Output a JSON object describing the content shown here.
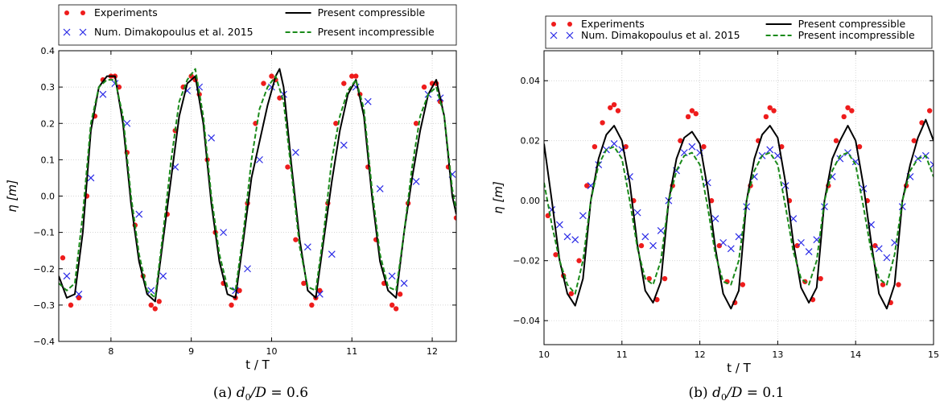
{
  "legend": {
    "experiments": "Experiments",
    "numerical": "Num. Dimakopoulus et al. 2015",
    "compressible": "Present compressible",
    "incompressible": "Present incompressible"
  },
  "colors": {
    "experiments": "#ee1c1c",
    "numerical": "#2a2ae6",
    "compressible": "#000000",
    "incompressible": "#1a8a1a",
    "grid": "#c8c8c8"
  },
  "chart_data": [
    {
      "type": "line",
      "panel": "(a)",
      "caption_label": "(a)",
      "caption_math": "d0/D = 0.6",
      "xlabel": "t / T",
      "ylabel": "η [m]",
      "xlim": [
        7.35,
        12.3
      ],
      "ylim": [
        -0.4,
        0.4
      ],
      "xticks": [
        8,
        9,
        10,
        11,
        12
      ],
      "yticks": [
        -0.4,
        -0.3,
        -0.2,
        -0.1,
        0.0,
        0.1,
        0.2,
        0.3,
        0.4
      ],
      "ytick_labels": [
        "−0.4",
        "−0.3",
        "−0.2",
        "−0.1",
        "0.0",
        "0.1",
        "0.2",
        "0.3",
        "0.4"
      ],
      "grid": true,
      "legend_position": "top, outside",
      "series": [
        {
          "name": "Experiments",
          "style": "dots",
          "x": [
            7.4,
            7.5,
            7.6,
            7.7,
            7.8,
            7.9,
            8.0,
            8.05,
            8.1,
            8.2,
            8.3,
            8.4,
            8.5,
            8.55,
            8.6,
            8.7,
            8.8,
            8.9,
            9.0,
            9.05,
            9.1,
            9.2,
            9.3,
            9.4,
            9.5,
            9.55,
            9.6,
            9.7,
            9.8,
            9.9,
            10.0,
            10.05,
            10.1,
            10.2,
            10.3,
            10.4,
            10.5,
            10.55,
            10.6,
            10.7,
            10.8,
            10.9,
            11.0,
            11.05,
            11.1,
            11.2,
            11.3,
            11.4,
            11.5,
            11.55,
            11.6,
            11.7,
            11.8,
            11.9,
            12.0,
            12.05,
            12.1,
            12.2,
            12.3
          ],
          "y": [
            -0.17,
            -0.3,
            -0.28,
            0.0,
            0.22,
            0.32,
            0.33,
            0.33,
            0.3,
            0.12,
            -0.08,
            -0.22,
            -0.3,
            -0.31,
            -0.29,
            -0.05,
            0.18,
            0.3,
            0.33,
            0.32,
            0.28,
            0.1,
            -0.1,
            -0.24,
            -0.3,
            -0.28,
            -0.26,
            -0.02,
            0.2,
            0.31,
            0.33,
            0.32,
            0.27,
            0.08,
            -0.12,
            -0.24,
            -0.3,
            -0.28,
            -0.26,
            -0.02,
            0.2,
            0.31,
            0.33,
            0.33,
            0.28,
            0.08,
            -0.12,
            -0.24,
            -0.3,
            -0.31,
            -0.27,
            -0.02,
            0.2,
            0.3,
            0.31,
            0.31,
            0.26,
            0.08,
            -0.06
          ]
        },
        {
          "name": "Num. Dimakopoulus et al. 2015",
          "style": "crosses",
          "x": [
            7.45,
            7.6,
            7.75,
            7.9,
            8.05,
            8.2,
            8.35,
            8.5,
            8.65,
            8.8,
            8.95,
            9.1,
            9.25,
            9.4,
            9.55,
            9.7,
            9.85,
            10.0,
            10.15,
            10.3,
            10.45,
            10.6,
            10.75,
            10.9,
            11.05,
            11.2,
            11.35,
            11.5,
            11.65,
            11.8,
            11.95,
            12.1,
            12.25
          ],
          "y": [
            -0.22,
            -0.27,
            0.05,
            0.28,
            0.31,
            0.2,
            -0.05,
            -0.26,
            -0.22,
            0.08,
            0.29,
            0.3,
            0.16,
            -0.1,
            -0.26,
            -0.2,
            0.1,
            0.3,
            0.28,
            0.12,
            -0.14,
            -0.27,
            -0.16,
            0.14,
            0.3,
            0.26,
            0.02,
            -0.22,
            -0.24,
            0.04,
            0.28,
            0.27,
            0.06
          ]
        },
        {
          "name": "Present compressible",
          "style": "solid",
          "x": [
            7.35,
            7.45,
            7.55,
            7.65,
            7.75,
            7.85,
            7.95,
            8.05,
            8.15,
            8.25,
            8.35,
            8.45,
            8.55,
            8.65,
            8.75,
            8.85,
            8.95,
            9.05,
            9.15,
            9.25,
            9.35,
            9.45,
            9.55,
            9.65,
            9.75,
            9.85,
            9.95,
            10.05,
            10.1,
            10.15,
            10.25,
            10.35,
            10.45,
            10.55,
            10.65,
            10.75,
            10.85,
            10.95,
            11.05,
            11.15,
            11.25,
            11.35,
            11.45,
            11.55,
            11.65,
            11.75,
            11.85,
            11.95,
            12.05,
            12.15,
            12.25,
            12.3
          ],
          "y": [
            -0.22,
            -0.28,
            -0.27,
            -0.1,
            0.18,
            0.3,
            0.33,
            0.33,
            0.2,
            -0.02,
            -0.18,
            -0.27,
            -0.29,
            -0.12,
            0.05,
            0.22,
            0.31,
            0.33,
            0.2,
            -0.02,
            -0.18,
            -0.27,
            -0.28,
            -0.12,
            0.05,
            0.15,
            0.25,
            0.33,
            0.35,
            0.3,
            0.08,
            -0.12,
            -0.26,
            -0.28,
            -0.12,
            0.04,
            0.18,
            0.28,
            0.32,
            0.22,
            0.0,
            -0.18,
            -0.26,
            -0.28,
            -0.1,
            0.05,
            0.18,
            0.28,
            0.32,
            0.22,
            0.0,
            -0.05
          ]
        },
        {
          "name": "Present incompressible",
          "style": "dashed",
          "x": [
            7.35,
            7.45,
            7.55,
            7.65,
            7.75,
            7.85,
            7.95,
            8.05,
            8.15,
            8.25,
            8.35,
            8.45,
            8.55,
            8.65,
            8.75,
            8.85,
            8.95,
            9.05,
            9.15,
            9.25,
            9.35,
            9.45,
            9.55,
            9.65,
            9.75,
            9.85,
            9.95,
            10.05,
            10.15,
            10.25,
            10.35,
            10.45,
            10.55,
            10.65,
            10.75,
            10.85,
            10.95,
            11.05,
            11.15,
            11.25,
            11.35,
            11.45,
            11.55,
            11.65,
            11.75,
            11.85,
            11.95,
            12.05,
            12.15,
            12.25,
            12.3
          ],
          "y": [
            -0.24,
            -0.26,
            -0.24,
            -0.05,
            0.2,
            0.3,
            0.32,
            0.32,
            0.22,
            0.0,
            -0.16,
            -0.26,
            -0.28,
            -0.1,
            0.1,
            0.26,
            0.32,
            0.35,
            0.22,
            0.0,
            -0.16,
            -0.25,
            -0.26,
            -0.1,
            0.1,
            0.24,
            0.3,
            0.33,
            0.26,
            0.06,
            -0.14,
            -0.25,
            -0.26,
            -0.1,
            0.1,
            0.22,
            0.29,
            0.32,
            0.24,
            0.02,
            -0.16,
            -0.25,
            -0.26,
            -0.1,
            0.08,
            0.22,
            0.28,
            0.3,
            0.22,
            0.02,
            -0.04
          ]
        }
      ]
    },
    {
      "type": "line",
      "panel": "(b)",
      "caption_label": "(b)",
      "caption_math": "d0/D = 0.1",
      "xlabel": "t / T",
      "ylabel": "η [m]",
      "xlim": [
        10,
        15
      ],
      "ylim": [
        -0.048,
        0.05
      ],
      "xticks": [
        10,
        11,
        12,
        13,
        14,
        15
      ],
      "yticks": [
        -0.04,
        -0.02,
        0.0,
        0.02,
        0.04
      ],
      "ytick_labels": [
        "−0.04",
        "−0.02",
        "0.00",
        "0.02",
        "0.04"
      ],
      "grid": true,
      "legend_position": "top, inside",
      "series": [
        {
          "name": "Experiments",
          "style": "dots",
          "x": [
            10.05,
            10.15,
            10.25,
            10.35,
            10.45,
            10.55,
            10.65,
            10.75,
            10.85,
            10.9,
            10.95,
            11.05,
            11.15,
            11.25,
            11.35,
            11.45,
            11.55,
            11.65,
            11.75,
            11.85,
            11.9,
            11.95,
            12.05,
            12.15,
            12.25,
            12.35,
            12.45,
            12.55,
            12.65,
            12.75,
            12.85,
            12.9,
            12.95,
            13.05,
            13.15,
            13.25,
            13.35,
            13.45,
            13.55,
            13.65,
            13.75,
            13.85,
            13.9,
            13.95,
            14.05,
            14.15,
            14.25,
            14.35,
            14.45,
            14.55,
            14.65,
            14.75,
            14.85,
            14.95
          ],
          "y": [
            -0.005,
            -0.018,
            -0.025,
            -0.031,
            -0.02,
            0.005,
            0.018,
            0.026,
            0.031,
            0.032,
            0.03,
            0.018,
            0.0,
            -0.015,
            -0.026,
            -0.033,
            -0.026,
            0.005,
            0.02,
            0.028,
            0.03,
            0.029,
            0.018,
            0.0,
            -0.015,
            -0.027,
            -0.034,
            -0.028,
            0.005,
            0.02,
            0.028,
            0.031,
            0.03,
            0.018,
            0.0,
            -0.015,
            -0.027,
            -0.033,
            -0.026,
            0.005,
            0.02,
            0.028,
            0.031,
            0.03,
            0.018,
            0.0,
            -0.015,
            -0.028,
            -0.034,
            -0.028,
            0.005,
            0.02,
            0.026,
            0.03
          ]
        },
        {
          "name": "Num. Dimakopoulus et al. 2015",
          "style": "crosses",
          "x": [
            10.1,
            10.2,
            10.3,
            10.4,
            10.5,
            10.6,
            10.7,
            10.8,
            10.9,
            11.0,
            11.1,
            11.2,
            11.3,
            11.4,
            11.5,
            11.6,
            11.7,
            11.8,
            11.9,
            12.0,
            12.1,
            12.2,
            12.3,
            12.4,
            12.5,
            12.6,
            12.7,
            12.8,
            12.9,
            13.0,
            13.1,
            13.2,
            13.3,
            13.4,
            13.5,
            13.6,
            13.7,
            13.8,
            13.9,
            14.0,
            14.1,
            14.2,
            14.3,
            14.4,
            14.5,
            14.6,
            14.7,
            14.8,
            14.9,
            15.0
          ],
          "y": [
            -0.003,
            -0.008,
            -0.012,
            -0.013,
            -0.005,
            0.005,
            0.012,
            0.017,
            0.019,
            0.017,
            0.008,
            -0.004,
            -0.012,
            -0.015,
            -0.01,
            0.0,
            0.01,
            0.016,
            0.018,
            0.016,
            0.006,
            -0.006,
            -0.014,
            -0.016,
            -0.012,
            -0.002,
            0.008,
            0.015,
            0.017,
            0.015,
            0.005,
            -0.006,
            -0.014,
            -0.017,
            -0.013,
            -0.002,
            0.008,
            0.014,
            0.016,
            0.013,
            0.004,
            -0.008,
            -0.016,
            -0.019,
            -0.014,
            -0.002,
            0.008,
            0.014,
            0.015,
            0.012
          ]
        },
        {
          "name": "Present compressible",
          "style": "solid",
          "x": [
            10.0,
            10.1,
            10.2,
            10.3,
            10.4,
            10.5,
            10.6,
            10.7,
            10.8,
            10.9,
            11.0,
            11.1,
            11.2,
            11.3,
            11.4,
            11.5,
            11.6,
            11.7,
            11.8,
            11.9,
            12.0,
            12.1,
            12.2,
            12.3,
            12.4,
            12.5,
            12.6,
            12.7,
            12.8,
            12.9,
            13.0,
            13.1,
            13.2,
            13.3,
            13.4,
            13.5,
            13.6,
            13.7,
            13.8,
            13.9,
            14.0,
            14.1,
            14.2,
            14.3,
            14.4,
            14.5,
            14.6,
            14.7,
            14.8,
            14.9,
            15.0
          ],
          "y": [
            0.019,
            0.0,
            -0.02,
            -0.031,
            -0.035,
            -0.026,
            0.0,
            0.014,
            0.022,
            0.025,
            0.02,
            0.006,
            -0.015,
            -0.03,
            -0.034,
            -0.027,
            0.0,
            0.014,
            0.021,
            0.023,
            0.019,
            0.004,
            -0.016,
            -0.031,
            -0.036,
            -0.03,
            0.0,
            0.014,
            0.022,
            0.025,
            0.021,
            0.006,
            -0.014,
            -0.029,
            -0.034,
            -0.029,
            0.0,
            0.014,
            0.02,
            0.025,
            0.02,
            0.005,
            -0.014,
            -0.031,
            -0.036,
            -0.028,
            0.0,
            0.012,
            0.021,
            0.027,
            0.02
          ]
        },
        {
          "name": "Present incompressible",
          "style": "dashed",
          "x": [
            10.0,
            10.1,
            10.2,
            10.3,
            10.4,
            10.5,
            10.6,
            10.7,
            10.8,
            10.9,
            11.0,
            11.1,
            11.2,
            11.3,
            11.4,
            11.5,
            11.6,
            11.7,
            11.8,
            11.9,
            12.0,
            12.1,
            12.2,
            12.3,
            12.4,
            12.5,
            12.6,
            12.7,
            12.8,
            12.9,
            13.0,
            13.1,
            13.2,
            13.3,
            13.4,
            13.5,
            13.6,
            13.7,
            13.8,
            13.9,
            14.0,
            14.1,
            14.2,
            14.3,
            14.4,
            14.5,
            14.6,
            14.7,
            14.8,
            14.9,
            15.0
          ],
          "y": [
            0.006,
            -0.008,
            -0.02,
            -0.028,
            -0.031,
            -0.02,
            0.0,
            0.012,
            0.017,
            0.018,
            0.014,
            0.0,
            -0.016,
            -0.026,
            -0.028,
            -0.02,
            0.0,
            0.01,
            0.015,
            0.016,
            0.012,
            -0.002,
            -0.018,
            -0.027,
            -0.028,
            -0.02,
            0.0,
            0.01,
            0.015,
            0.016,
            0.012,
            -0.002,
            -0.017,
            -0.026,
            -0.028,
            -0.02,
            0.0,
            0.01,
            0.015,
            0.016,
            0.012,
            -0.002,
            -0.017,
            -0.026,
            -0.028,
            -0.018,
            0.0,
            0.01,
            0.014,
            0.015,
            0.008
          ]
        }
      ]
    }
  ]
}
